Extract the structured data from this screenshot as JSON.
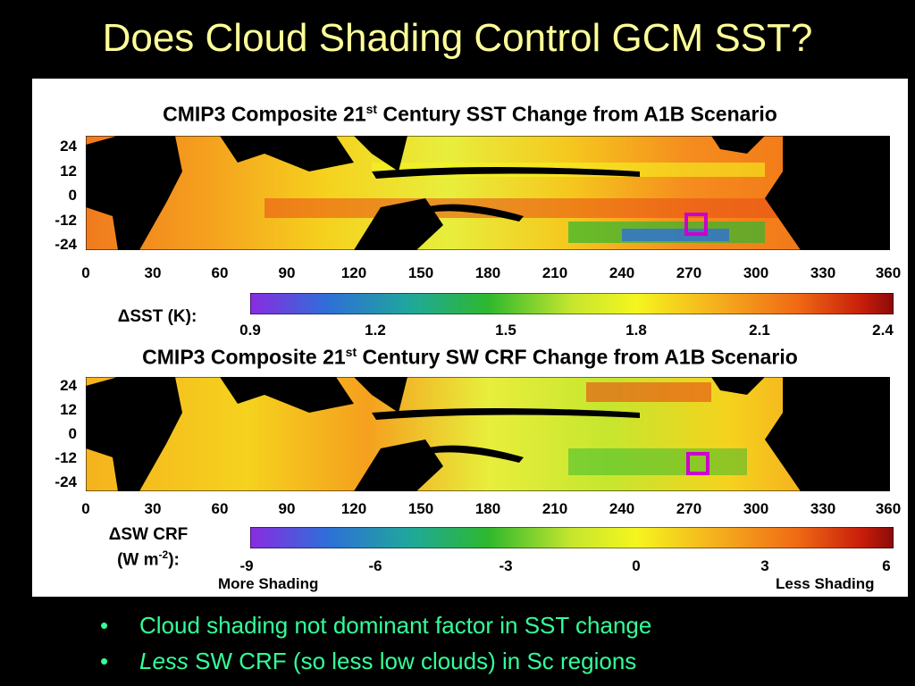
{
  "slide_title": "Does Cloud Shading Control GCM SST?",
  "map1": {
    "title_pre": "CMIP3 Composite 21",
    "title_sup": "st",
    "title_post": " Century SST Change from A1B Scenario",
    "lat_labels": [
      "24",
      "12",
      "0",
      "-12",
      "-24"
    ],
    "lon_labels": [
      "0",
      "30",
      "60",
      "90",
      "120",
      "150",
      "180",
      "210",
      "240",
      "270",
      "300",
      "330",
      "360"
    ],
    "colorbar_label": "ΔSST (K):",
    "colorbar_ticks": [
      "0.9",
      "1.2",
      "1.5",
      "1.8",
      "2.1",
      "2.4"
    ]
  },
  "map2": {
    "title_pre": "CMIP3 Composite 21",
    "title_sup": "st",
    "title_post": " Century SW CRF Change from A1B Scenario",
    "lat_labels": [
      "24",
      "12",
      "0",
      "-12",
      "-24"
    ],
    "lon_labels": [
      "0",
      "30",
      "60",
      "90",
      "120",
      "150",
      "180",
      "210",
      "240",
      "270",
      "300",
      "330",
      "360"
    ],
    "colorbar_label_line1": "ΔSW CRF",
    "colorbar_label_line2_pre": "(W m",
    "colorbar_label_line2_sup": "-2",
    "colorbar_label_line2_post": "):",
    "colorbar_ticks": [
      "-9",
      "-6",
      "-3",
      "0",
      "3",
      "6"
    ],
    "left_note": "More Shading",
    "right_note": "Less Shading"
  },
  "bullets": {
    "b1_marker": "•",
    "b1_text": "Cloud shading not dominant factor in SST change",
    "b2_marker": "•",
    "b2_em": "Less",
    "b2_text": " SW CRF (so less low clouds) in Sc regions"
  },
  "colors": {
    "title": "#ffff99",
    "bullets": "#33ff99",
    "land": "#000000",
    "box": "#cc00cc",
    "colorbar": [
      "#8a2be2",
      "#2e6fd8",
      "#1fa89a",
      "#2eb82e",
      "#c6e62e",
      "#f5f51e",
      "#f5b21e",
      "#f06a14",
      "#c81e0a",
      "#8b0a0a"
    ]
  }
}
